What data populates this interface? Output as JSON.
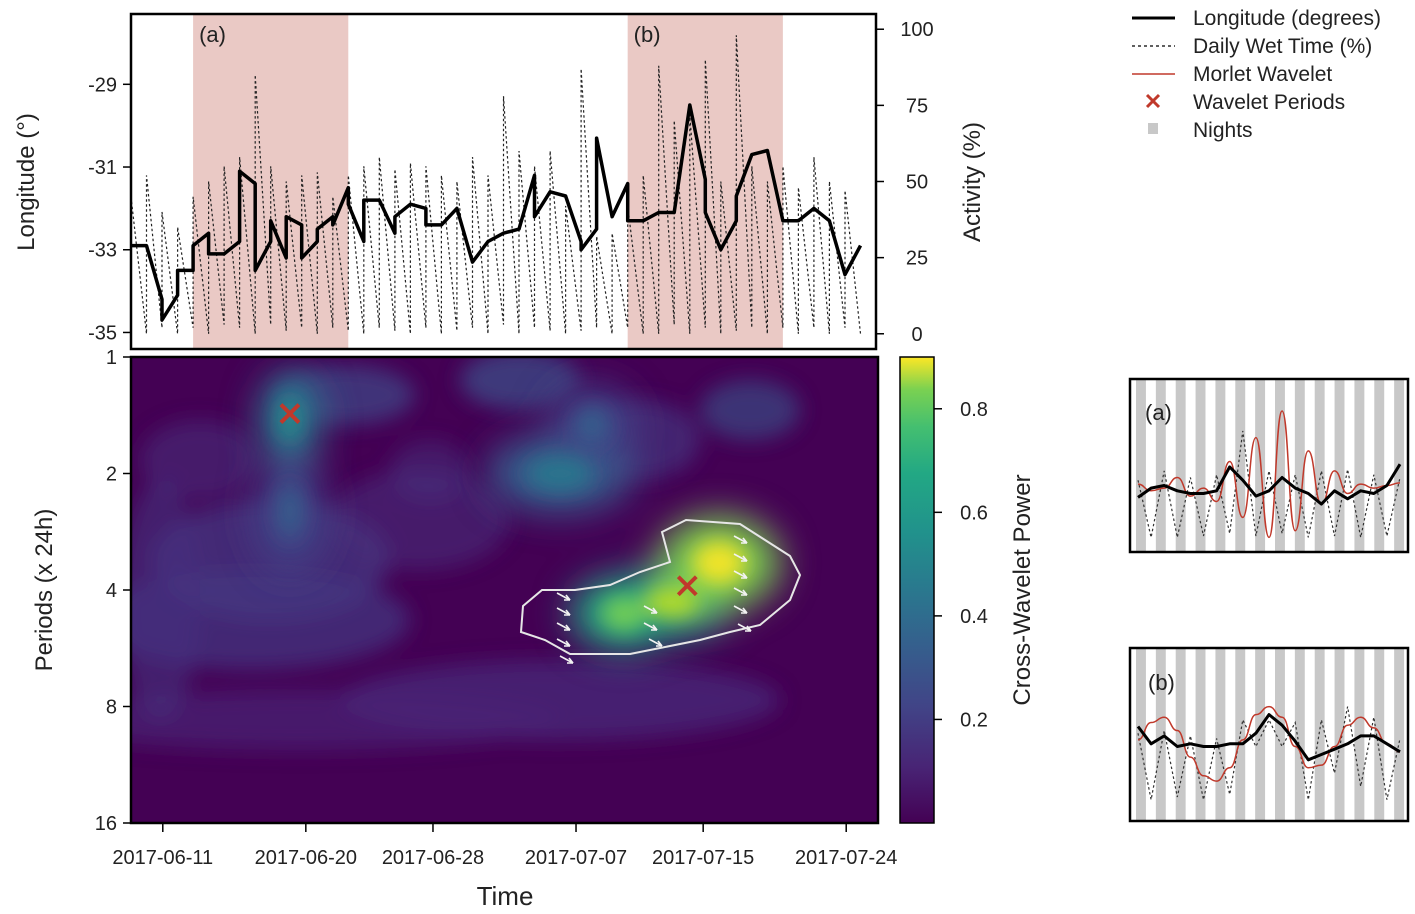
{
  "chart_data": [
    {
      "type": "line",
      "title": "",
      "xlabel": "",
      "ylabel_left": "Longitude (°)",
      "ylabel_right": "Activity (%)",
      "ylim_left": [
        -35.4,
        -27.3
      ],
      "ylim_right": [
        -5,
        105
      ],
      "yticks_left": [
        "-29",
        "-31",
        "-33",
        "-35"
      ],
      "yticks_right": [
        "100",
        "75",
        "50",
        "25",
        "0"
      ],
      "ytick_values_left": [
        -29,
        -31,
        -33,
        -35
      ],
      "ytick_values_right": [
        100,
        75,
        50,
        25,
        0
      ],
      "xlim": [
        "2017-06-08",
        "2017-07-26"
      ],
      "shaded_periods": [
        {
          "label": "(a)",
          "start": "2017-06-12",
          "end": "2017-06-22"
        },
        {
          "label": "(b)",
          "start": "2017-07-10",
          "end": "2017-07-20"
        }
      ],
      "series": [
        {
          "name": "Longitude (degrees)",
          "axis": "left",
          "style": "solid",
          "x": [
            "2017-06-08",
            "2017-06-09",
            "2017-06-10",
            "2017-06-10",
            "2017-06-11",
            "2017-06-11",
            "2017-06-12",
            "2017-06-12",
            "2017-06-13",
            "2017-06-13",
            "2017-06-14",
            "2017-06-14",
            "2017-06-15",
            "2017-06-15",
            "2017-06-16",
            "2017-06-16",
            "2017-06-17",
            "2017-06-17",
            "2017-06-18",
            "2017-06-18",
            "2017-06-19",
            "2017-06-19",
            "2017-06-20",
            "2017-06-20",
            "2017-06-21",
            "2017-06-21",
            "2017-06-22",
            "2017-06-22",
            "2017-06-23",
            "2017-06-23",
            "2017-06-24",
            "2017-06-25",
            "2017-06-25",
            "2017-06-26",
            "2017-06-27",
            "2017-06-27",
            "2017-06-28",
            "2017-06-29",
            "2017-06-30",
            "2017-07-01",
            "2017-07-02",
            "2017-07-03",
            "2017-07-04",
            "2017-07-04",
            "2017-07-05",
            "2017-07-06",
            "2017-07-07",
            "2017-07-07",
            "2017-07-08",
            "2017-07-08",
            "2017-07-09",
            "2017-07-10",
            "2017-07-10",
            "2017-07-11",
            "2017-07-12",
            "2017-07-13",
            "2017-07-14",
            "2017-07-15",
            "2017-07-15",
            "2017-07-16",
            "2017-07-17",
            "2017-07-17",
            "2017-07-18",
            "2017-07-19",
            "2017-07-20",
            "2017-07-21",
            "2017-07-22",
            "2017-07-23",
            "2017-07-24",
            "2017-07-25"
          ],
          "values": [
            -32.9,
            -32.9,
            -34.2,
            -34.7,
            -34.1,
            -33.5,
            -33.5,
            -32.9,
            -32.6,
            -33.1,
            -33.1,
            -33.1,
            -32.8,
            -31.1,
            -31.4,
            -33.5,
            -32.8,
            -32.3,
            -33.2,
            -32.2,
            -32.4,
            -33.2,
            -32.8,
            -32.5,
            -32.2,
            -32.4,
            -31.5,
            -31.9,
            -32.8,
            -31.8,
            -31.8,
            -32.6,
            -32.2,
            -31.9,
            -32.0,
            -32.4,
            -32.4,
            -32.0,
            -33.3,
            -32.8,
            -32.6,
            -32.5,
            -31.2,
            -32.2,
            -31.6,
            -31.7,
            -32.8,
            -33.0,
            -32.5,
            -30.3,
            -32.2,
            -31.4,
            -32.3,
            -32.3,
            -32.1,
            -32.1,
            -29.5,
            -31.3,
            -32.1,
            -33.0,
            -32.3,
            -31.7,
            -30.7,
            -30.6,
            -32.3,
            -32.3,
            -32.0,
            -32.3,
            -33.6,
            -32.9
          ]
        },
        {
          "name": "Daily Wet Time (%)",
          "axis": "right",
          "style": "dotted",
          "x": [
            "2017-06-08",
            "2017-06-09",
            "2017-06-09",
            "2017-06-10",
            "2017-06-10",
            "2017-06-11",
            "2017-06-11",
            "2017-06-12",
            "2017-06-12",
            "2017-06-13",
            "2017-06-13",
            "2017-06-14",
            "2017-06-14",
            "2017-06-15",
            "2017-06-15",
            "2017-06-16",
            "2017-06-16",
            "2017-06-17",
            "2017-06-17",
            "2017-06-18",
            "2017-06-18",
            "2017-06-19",
            "2017-06-19",
            "2017-06-20",
            "2017-06-20",
            "2017-06-21",
            "2017-06-21",
            "2017-06-22",
            "2017-06-22",
            "2017-06-23",
            "2017-06-23",
            "2017-06-24",
            "2017-06-24",
            "2017-06-25",
            "2017-06-25",
            "2017-06-26",
            "2017-06-26",
            "2017-06-27",
            "2017-06-27",
            "2017-06-28",
            "2017-06-28",
            "2017-06-29",
            "2017-06-29",
            "2017-06-30",
            "2017-06-30",
            "2017-07-01",
            "2017-07-01",
            "2017-07-02",
            "2017-07-02",
            "2017-07-03",
            "2017-07-03",
            "2017-07-04",
            "2017-07-04",
            "2017-07-05",
            "2017-07-05",
            "2017-07-06",
            "2017-07-06",
            "2017-07-07",
            "2017-07-07",
            "2017-07-08",
            "2017-07-08",
            "2017-07-09",
            "2017-07-09",
            "2017-07-10",
            "2017-07-10",
            "2017-07-11",
            "2017-07-11",
            "2017-07-12",
            "2017-07-12",
            "2017-07-13",
            "2017-07-13",
            "2017-07-14",
            "2017-07-14",
            "2017-07-15",
            "2017-07-15",
            "2017-07-16",
            "2017-07-16",
            "2017-07-17",
            "2017-07-17",
            "2017-07-18",
            "2017-07-18",
            "2017-07-19",
            "2017-07-19",
            "2017-07-20",
            "2017-07-20",
            "2017-07-21",
            "2017-07-21",
            "2017-07-22",
            "2017-07-22",
            "2017-07-23",
            "2017-07-23",
            "2017-07-24",
            "2017-07-24",
            "2017-07-25"
          ],
          "values": [
            45,
            0,
            52,
            2,
            40,
            0,
            35,
            2,
            45,
            0,
            50,
            3,
            55,
            2,
            58,
            0,
            85,
            3,
            55,
            1,
            50,
            2,
            52,
            0,
            53,
            2,
            45,
            1,
            52,
            0,
            55,
            2,
            58,
            1,
            54,
            0,
            56,
            2,
            55,
            0,
            52,
            1,
            50,
            2,
            58,
            0,
            52,
            3,
            78,
            0,
            60,
            2,
            55,
            1,
            60,
            0,
            42,
            1,
            87,
            2,
            32,
            0,
            33,
            2,
            42,
            0,
            52,
            0,
            88,
            3,
            70,
            0,
            72,
            2,
            90,
            0,
            50,
            1,
            98,
            2,
            55,
            0,
            50,
            2,
            55,
            0,
            48,
            2,
            58,
            0,
            50,
            2,
            47,
            0
          ]
        },
        {
          "name": "Morlet Wavelet",
          "style": "line",
          "x": [],
          "values": []
        },
        {
          "name": "Wavelet Periods",
          "style": "marker",
          "x": [
            "2017-06-19",
            "2017-07-14"
          ],
          "values": [
            1.4,
            3.9
          ]
        },
        {
          "name": "Nights",
          "style": "band",
          "x": [],
          "values": []
        }
      ]
    },
    {
      "type": "heatmap",
      "title": "",
      "xlabel": "Time",
      "ylabel": "Periods (x 24h)",
      "colorbar_label": "Cross-Wavelet Power",
      "xticks": [
        "2017-06-11",
        "2017-06-20",
        "2017-06-28",
        "2017-07-07",
        "2017-07-15",
        "2017-07-24"
      ],
      "yticks": [
        "1",
        "2",
        "4",
        "8",
        "16"
      ],
      "ytick_values": [
        1,
        2,
        4,
        8,
        16
      ],
      "colorbar_ticks": [
        "0.8",
        "0.6",
        "0.4",
        "0.2"
      ],
      "colorbar_tick_values": [
        0.8,
        0.6,
        0.4,
        0.2
      ],
      "colorbar_range": [
        0,
        0.9
      ],
      "y_scale": "log2",
      "ylim": [
        1,
        16
      ],
      "xlim": [
        "2017-06-09",
        "2017-07-26"
      ],
      "blobs": [
        {
          "x": "2017-06-19",
          "period": 1.45,
          "power": 0.42
        },
        {
          "x": "2017-06-19",
          "period": 2.5,
          "power": 0.3
        },
        {
          "x": "2017-07-06",
          "period": 2.0,
          "power": 0.38
        },
        {
          "x": "2017-07-08",
          "period": 1.5,
          "power": 0.3
        },
        {
          "x": "2017-07-10",
          "period": 4.6,
          "power": 0.7
        },
        {
          "x": "2017-07-13",
          "period": 4.3,
          "power": 0.78
        },
        {
          "x": "2017-07-16",
          "period": 3.4,
          "power": 0.9
        }
      ],
      "significant_region": true,
      "phase_arrows": true,
      "markers": [
        {
          "x": "2017-06-19",
          "period": 1.4
        },
        {
          "x": "2017-07-14",
          "period": 3.9
        }
      ]
    },
    {
      "type": "line",
      "title": "(a)",
      "xlabel": "",
      "ylabel": "",
      "series": [
        {
          "name": "Longitude (degrees)",
          "x": [
            0,
            1,
            2,
            3,
            4,
            5,
            6,
            7,
            8,
            9,
            10,
            11,
            12,
            13,
            14,
            15,
            16,
            17,
            18,
            19,
            20
          ],
          "values": [
            0.35,
            0.42,
            0.44,
            0.4,
            0.38,
            0.38,
            0.4,
            0.58,
            0.48,
            0.36,
            0.4,
            0.5,
            0.42,
            0.38,
            0.3,
            0.4,
            0.34,
            0.4,
            0.38,
            0.44,
            0.6
          ]
        },
        {
          "name": "Daily Wet Time (%)",
          "x": [
            0,
            1,
            2,
            3,
            4,
            5,
            6,
            7,
            8,
            9,
            10,
            11,
            12,
            13,
            14,
            15,
            16,
            17,
            18,
            19,
            20
          ],
          "values": [
            0.48,
            0.05,
            0.55,
            0.05,
            0.5,
            0.06,
            0.52,
            0.08,
            0.85,
            0.06,
            0.55,
            0.08,
            0.52,
            0.05,
            0.55,
            0.06,
            0.56,
            0.05,
            0.52,
            0.06,
            0.5
          ]
        },
        {
          "name": "Morlet Wavelet",
          "x": [
            0,
            1,
            2,
            3,
            4,
            5,
            6,
            7,
            8,
            9,
            10,
            11,
            12,
            13,
            14,
            15,
            16,
            17,
            18,
            19,
            20
          ],
          "values": [
            0.45,
            0.4,
            0.42,
            0.5,
            0.36,
            0.42,
            0.32,
            0.62,
            0.2,
            0.8,
            0.05,
            1.0,
            0.1,
            0.7,
            0.3,
            0.55,
            0.38,
            0.45,
            0.42,
            0.44,
            0.46
          ]
        },
        {
          "name": "Nights",
          "x": [],
          "values": []
        }
      ]
    },
    {
      "type": "line",
      "title": "(b)",
      "xlabel": "",
      "ylabel": "",
      "series": [
        {
          "name": "Longitude (degrees)",
          "x": [
            0,
            1,
            2,
            3,
            4,
            5,
            6,
            7,
            8,
            9,
            10,
            11,
            12,
            13,
            14,
            15,
            16,
            17,
            18,
            19,
            20
          ],
          "values": [
            0.65,
            0.52,
            0.58,
            0.5,
            0.52,
            0.5,
            0.5,
            0.52,
            0.52,
            0.6,
            0.74,
            0.66,
            0.54,
            0.4,
            0.44,
            0.48,
            0.52,
            0.58,
            0.58,
            0.52,
            0.46
          ]
        },
        {
          "name": "Daily Wet Time (%)",
          "x": [
            0,
            1,
            2,
            3,
            4,
            5,
            6,
            7,
            8,
            9,
            10,
            11,
            12,
            13,
            14,
            15,
            16,
            17,
            18,
            19,
            20
          ],
          "values": [
            0.6,
            0.1,
            0.62,
            0.12,
            0.58,
            0.1,
            0.56,
            0.14,
            0.7,
            0.5,
            0.7,
            0.5,
            0.68,
            0.1,
            0.7,
            0.3,
            0.8,
            0.2,
            0.72,
            0.1,
            0.56
          ]
        },
        {
          "name": "Morlet Wavelet",
          "x": [
            0,
            1,
            2,
            3,
            4,
            5,
            6,
            7,
            8,
            9,
            10,
            11,
            12,
            13,
            14,
            15,
            16,
            17,
            18,
            19,
            20
          ],
          "values": [
            0.55,
            0.68,
            0.72,
            0.62,
            0.42,
            0.28,
            0.24,
            0.34,
            0.55,
            0.74,
            0.8,
            0.72,
            0.5,
            0.34,
            0.36,
            0.5,
            0.66,
            0.72,
            0.64,
            0.52,
            0.46
          ]
        },
        {
          "name": "Nights",
          "x": [],
          "values": []
        }
      ]
    }
  ],
  "colors": {
    "shade": "#eac9c5",
    "wavelet": "#c0392b",
    "marker": "#c0392b",
    "night": "#c8c8c8",
    "contour": "#e6e6e6",
    "arrow": "#f2f2f2"
  },
  "legend": {
    "placement": "top-right",
    "items": [
      {
        "label": "Longitude (degrees)",
        "style": "solid"
      },
      {
        "label": "Daily Wet Time (%)",
        "style": "dotted"
      },
      {
        "label": "Morlet Wavelet",
        "style": "red-line"
      },
      {
        "label": "Wavelet Periods",
        "style": "red-x"
      },
      {
        "label": "Nights",
        "style": "grey-square"
      }
    ]
  }
}
